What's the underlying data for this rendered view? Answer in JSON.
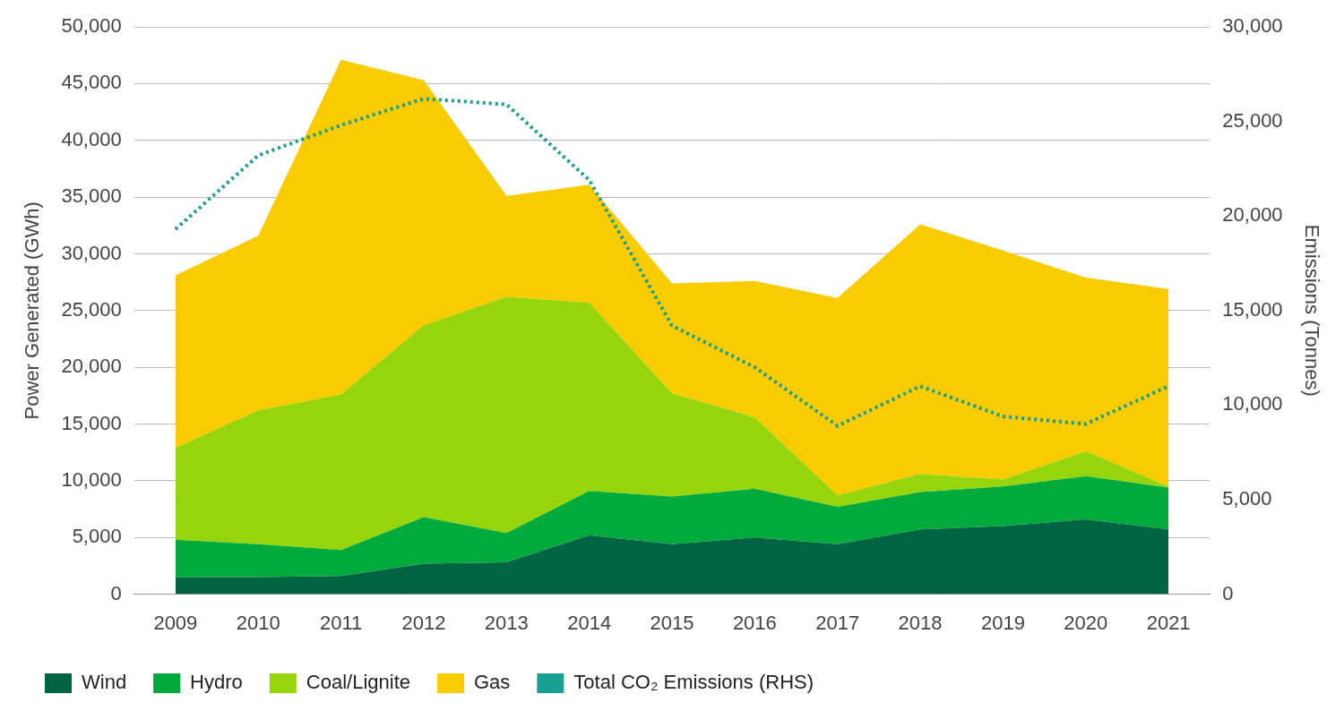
{
  "chart_data": {
    "type": "line",
    "stacked": true,
    "grid": true,
    "legend": "bottom",
    "categories": [
      "2009",
      "2010",
      "2011",
      "2012",
      "2013",
      "2014",
      "2015",
      "2016",
      "2017",
      "2018",
      "2019",
      "2020",
      "2021"
    ],
    "y_label": "Power Generated (GWh)",
    "y2_label": "Emissions (Tonnes)",
    "ylim": [
      0,
      50000
    ],
    "yticks": [
      0,
      {
        "value": 5000,
        "label": "5,000"
      },
      {
        "value": 10000,
        "label": "10,000"
      },
      {
        "value": 15000,
        "label": "15,000"
      },
      {
        "value": 20000,
        "label": "20,000"
      },
      {
        "value": 25000,
        "label": "25,000"
      },
      {
        "value": 30000,
        "label": "30,000"
      },
      {
        "value": 35000,
        "label": "35,000"
      },
      {
        "value": 40000,
        "label": "40,000"
      },
      {
        "value": 45000,
        "label": "45,000"
      },
      {
        "value": 50000,
        "label": "50,000"
      }
    ],
    "y2lim": [
      0,
      30000
    ],
    "y2ticks": [
      0,
      {
        "value": 5000,
        "label": "5,000"
      },
      {
        "value": 10000,
        "label": "10,000"
      },
      {
        "value": 15000,
        "label": "15,000"
      },
      {
        "value": 20000,
        "label": "20,000"
      },
      {
        "value": 25000,
        "label": "25,000"
      },
      {
        "value": 30000,
        "label": "30,000"
      }
    ],
    "series": [
      {
        "name": "Wind",
        "color": "#006341",
        "type": "area",
        "values": [
          1500,
          1500,
          1600,
          2700,
          2800,
          5200,
          4400,
          5000,
          4400,
          5700,
          6000,
          6600,
          5700
        ]
      },
      {
        "name": "Hydro",
        "color": "#00ab3c",
        "type": "area",
        "values": [
          3300,
          2900,
          2300,
          4100,
          2600,
          3900,
          4200,
          4300,
          3300,
          3300,
          3500,
          3800,
          3700
        ]
      },
      {
        "name": "Coal/Lignite",
        "color": "#96d50c",
        "type": "area",
        "values": [
          8100,
          11800,
          13700,
          16900,
          20800,
          16600,
          9100,
          6300,
          1000,
          1600,
          600,
          2200,
          100
        ]
      },
      {
        "name": "Gas",
        "color": "#f8cc00",
        "type": "area",
        "values": [
          15200,
          15400,
          29500,
          21600,
          8900,
          10400,
          9700,
          12000,
          17400,
          22000,
          20200,
          15300,
          17400
        ]
      },
      {
        "name": "Total CO₂ Emissions (RHS)",
        "color": "#1a9e8f",
        "type": "line",
        "line_style": "dotted",
        "axis": "y2",
        "values": [
          19300,
          23200,
          24800,
          26200,
          25900,
          21900,
          14200,
          12000,
          8900,
          11000,
          9400,
          9000,
          11000
        ]
      }
    ]
  }
}
